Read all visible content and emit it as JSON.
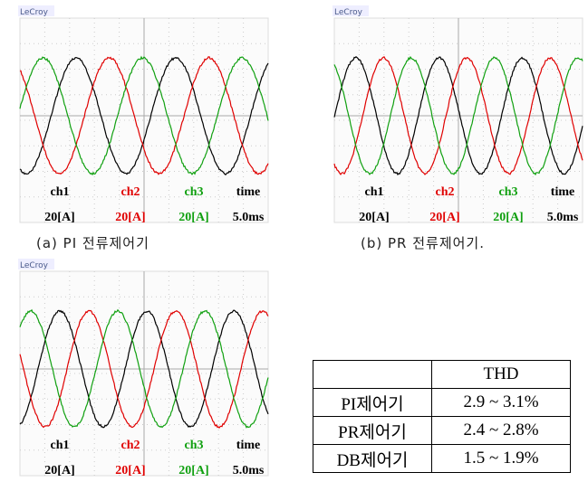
{
  "figures": [
    {
      "brand": "LeCroy",
      "channels": [
        {
          "name": "ch1",
          "scale": "20[A]",
          "color": "#000000"
        },
        {
          "name": "ch2",
          "scale": "20[A]",
          "color": "#e00000"
        },
        {
          "name": "ch3",
          "scale": "20[A]",
          "color": "#10a010"
        }
      ],
      "time": {
        "name": "time",
        "scale": "5.0ms"
      },
      "caption": "(a) PI 전류제어기"
    },
    {
      "brand": "LeCroy",
      "channels": [
        {
          "name": "ch1",
          "scale": "20[A]",
          "color": "#000000"
        },
        {
          "name": "ch2",
          "scale": "20[A]",
          "color": "#e00000"
        },
        {
          "name": "ch3",
          "scale": "20[A]",
          "color": "#10a010"
        }
      ],
      "time": {
        "name": "time",
        "scale": "5.0ms"
      },
      "caption": "(b) PR 전류제어기."
    },
    {
      "brand": "LeCroy",
      "channels": [
        {
          "name": "ch1",
          "scale": "20[A]",
          "color": "#000000"
        },
        {
          "name": "ch2",
          "scale": "20[A]",
          "color": "#e00000"
        },
        {
          "name": "ch3",
          "scale": "20[A]",
          "color": "#10a010"
        }
      ],
      "time": {
        "name": "time",
        "scale": "5.0ms"
      }
    }
  ],
  "table": {
    "header": [
      "THD"
    ],
    "rows": [
      [
        "PI제어기",
        "2.9 ~ 3.1%"
      ],
      [
        "PR제어기",
        "2.4 ~ 2.8%"
      ],
      [
        "DB제어기",
        "1.5 ~ 1.9%"
      ]
    ]
  }
}
